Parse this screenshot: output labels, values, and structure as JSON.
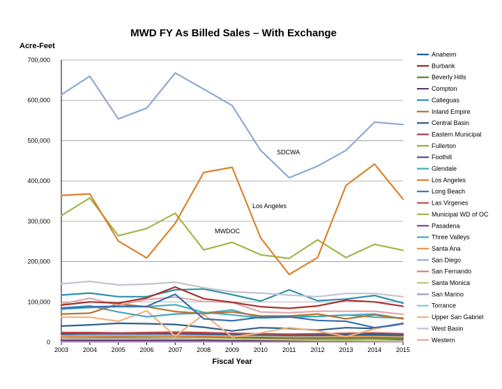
{
  "chart_data": {
    "type": "line",
    "title": "MWD FY As Billed Sales – With Exchange",
    "ylabel": "Acre-Feet",
    "xlabel": "Fiscal Year",
    "x": [
      "2003",
      "2004",
      "2005",
      "2006",
      "2007",
      "2008",
      "2009",
      "2010",
      "2011",
      "2012",
      "2013",
      "2014",
      "2015"
    ],
    "ylim": [
      0,
      700000
    ],
    "yticks": [
      0,
      100000,
      200000,
      300000,
      400000,
      500000,
      600000,
      700000
    ],
    "ytick_labels": [
      "0",
      "100,000",
      "200,000",
      "300,000",
      "400,000",
      "500,000",
      "600,000",
      "700,000"
    ],
    "grid": true,
    "legend_position": "right",
    "series": [
      {
        "name": "Anaheim",
        "color": "#1f5f8b",
        "values": [
          21000,
          22000,
          23000,
          22000,
          23000,
          21000,
          20000,
          19000,
          18000,
          18000,
          19000,
          20000,
          19000
        ]
      },
      {
        "name": "Burbank",
        "color": "#8b2a2a",
        "values": [
          14000,
          15000,
          15000,
          16000,
          15000,
          14000,
          13000,
          12000,
          12000,
          12000,
          13000,
          13000,
          12000
        ]
      },
      {
        "name": "Beverly Hills",
        "color": "#5a7a1a",
        "values": [
          12000,
          12000,
          12000,
          12000,
          12000,
          11000,
          11000,
          10000,
          10000,
          10000,
          10000,
          10000,
          9000
        ]
      },
      {
        "name": "Compton",
        "color": "#5a3a7a",
        "values": [
          5000,
          5000,
          5000,
          5000,
          5000,
          5000,
          4000,
          4000,
          4000,
          4000,
          4000,
          4000,
          4000
        ]
      },
      {
        "name": "Calleguas",
        "color": "#2f8fa8",
        "values": [
          117000,
          122000,
          113000,
          113000,
          130000,
          132000,
          118000,
          102000,
          130000,
          103000,
          107000,
          116000,
          97000
        ]
      },
      {
        "name": "Inland Empire",
        "color": "#b8732c",
        "values": [
          70000,
          72000,
          95000,
          88000,
          76000,
          71000,
          75000,
          65000,
          65000,
          70000,
          58000,
          68000,
          58000
        ]
      },
      {
        "name": "Central Basin",
        "color": "#2e5f8a",
        "values": [
          40000,
          43000,
          47000,
          46000,
          44000,
          37000,
          28000,
          36000,
          34000,
          30000,
          36000,
          34000,
          46000
        ]
      },
      {
        "name": "Eastern Municipal",
        "color": "#a83232",
        "values": [
          92000,
          100000,
          97000,
          110000,
          137000,
          108000,
          99000,
          88000,
          84000,
          90000,
          104000,
          100000,
          89000
        ]
      },
      {
        "name": "Fullerton",
        "color": "#8aab3a",
        "values": [
          13000,
          14000,
          14000,
          14000,
          14000,
          13000,
          12000,
          11000,
          11000,
          11000,
          11000,
          11000,
          10000
        ]
      },
      {
        "name": "Foothill",
        "color": "#6a4a8a",
        "values": [
          11000,
          11000,
          11000,
          11000,
          11000,
          10000,
          10000,
          9000,
          9000,
          9000,
          9000,
          9000,
          8000
        ]
      },
      {
        "name": "Glendale",
        "color": "#4aa3c0",
        "values": [
          85000,
          90000,
          75000,
          63000,
          70000,
          72000,
          80000,
          60000,
          64000,
          64000,
          67000,
          70000,
          58000
        ]
      },
      {
        "name": "Los Angeles",
        "color": "#d9822b",
        "values": [
          364000,
          368000,
          251000,
          209000,
          295000,
          421000,
          434000,
          259000,
          168000,
          210000,
          389000,
          442000,
          355000
        ]
      },
      {
        "name": "Long Beach",
        "color": "#3a6fb0",
        "values": [
          84000,
          88000,
          89000,
          89000,
          119000,
          58000,
          53000,
          62000,
          63000,
          54000,
          52000,
          36000,
          46000
        ]
      },
      {
        "name": "Las Virgenes",
        "color": "#c44545",
        "values": [
          24000,
          24000,
          23000,
          24000,
          25000,
          24000,
          22000,
          21000,
          20000,
          21000,
          22000,
          23000,
          21000
        ]
      },
      {
        "name": "Municipal WD of OC",
        "color": "#a3b54a",
        "values": [
          314000,
          358000,
          264000,
          282000,
          320000,
          229000,
          248000,
          217000,
          208000,
          254000,
          210000,
          243000,
          228000
        ]
      },
      {
        "name": "Pasadena",
        "color": "#7a4a9a",
        "values": [
          20000,
          21000,
          21000,
          21000,
          21000,
          20000,
          19000,
          18000,
          17000,
          17000,
          18000,
          18000,
          17000
        ]
      },
      {
        "name": "Three Valleys",
        "color": "#3ab0c4",
        "values": [
          82000,
          86000,
          88000,
          88000,
          93000,
          74000,
          68000,
          60000,
          62000,
          64000,
          68000,
          62000,
          60000
        ]
      },
      {
        "name": "Santa Ana",
        "color": "#e8944a",
        "values": [
          14000,
          15000,
          16000,
          16000,
          15000,
          15000,
          14000,
          14000,
          13000,
          13000,
          14000,
          14000,
          13000
        ]
      },
      {
        "name": "San Diego",
        "color": "#8fa8d0",
        "values": [
          614000,
          660000,
          554000,
          581000,
          668000,
          628000,
          587000,
          476000,
          408000,
          437000,
          476000,
          546000,
          540000
        ]
      },
      {
        "name": "San Fernando",
        "color": "#d98080",
        "values": [
          3000,
          3000,
          3000,
          3000,
          3000,
          3000,
          3000,
          2000,
          2000,
          2000,
          2000,
          2000,
          2000
        ]
      },
      {
        "name": "Santa Monica",
        "color": "#b8cc7a",
        "values": [
          12000,
          13000,
          13000,
          13000,
          12000,
          10000,
          9000,
          7000,
          6000,
          5000,
          5000,
          4000,
          3000
        ]
      },
      {
        "name": "San Marino",
        "color": "#a89ac8",
        "values": [
          1000,
          1000,
          1000,
          1000,
          1000,
          1000,
          1000,
          1000,
          1000,
          1000,
          1000,
          1000,
          1000
        ]
      },
      {
        "name": "Torrance",
        "color": "#7ac8d8",
        "values": [
          18000,
          19000,
          19000,
          19000,
          19000,
          18000,
          17000,
          16000,
          16000,
          16000,
          17000,
          17000,
          16000
        ]
      },
      {
        "name": "Upper San Gabriel",
        "color": "#f2b07a",
        "values": [
          62000,
          62000,
          52000,
          78000,
          15000,
          69000,
          13000,
          23000,
          36000,
          28000,
          14000,
          33000,
          48000
        ]
      },
      {
        "name": "West Basin",
        "color": "#c0c4d0",
        "values": [
          145000,
          151000,
          142000,
          144000,
          149000,
          135000,
          125000,
          122000,
          117000,
          113000,
          121000,
          121000,
          113000
        ]
      },
      {
        "name": "Western",
        "color": "#e0a8a8",
        "values": [
          95000,
          109000,
          92000,
          106000,
          112000,
          101000,
          99000,
          75000,
          73000,
          77000,
          77000,
          77000,
          69000
        ]
      }
    ],
    "annotations": [
      "SDCWA",
      "Los Angeles",
      "MWDOC"
    ]
  }
}
